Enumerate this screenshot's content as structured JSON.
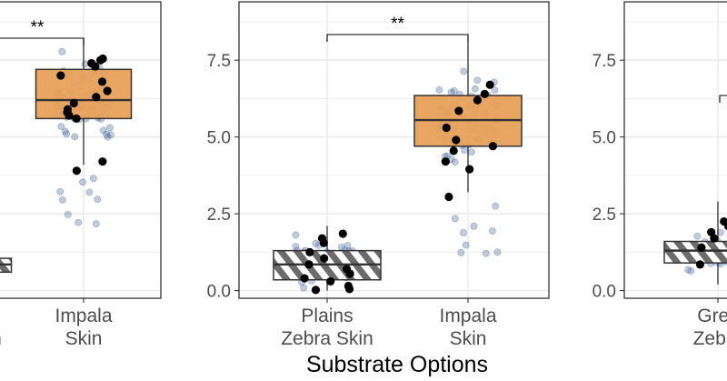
{
  "chart_data": {
    "type": "boxplot",
    "xlabel": "Substrate Options",
    "ylabel": "",
    "ylim": [
      -0.25,
      9.4
    ],
    "yticks": [
      "0.0",
      "2.5",
      "5.0",
      "7.5"
    ],
    "ytick_values": [
      0,
      2.5,
      5,
      7.5
    ],
    "grid": true,
    "colors": {
      "impala": "#E8A05A",
      "zebra_dark": "#6b6b6b",
      "zebra_light": "#ffffff",
      "jitter": "#4a6a9c",
      "mean_points": "#000000",
      "panel_border": "#333333",
      "grid": "#ebebeb"
    },
    "panels": [
      {
        "categories": [
          "",
          "Impala\nSkin"
        ],
        "significance": "**",
        "boxes": [
          {
            "category": "",
            "fill": "zebra",
            "min": 0.45,
            "q1": 0.6,
            "median": 0.85,
            "q3": 1.05,
            "max": 1.4
          },
          {
            "category": "Impala Skin",
            "fill": "impala",
            "min": 4.1,
            "q1": 5.6,
            "median": 6.2,
            "q3": 7.2,
            "max": 8.2
          }
        ],
        "means": [
          {
            "category": "Impala Skin",
            "values": [
              7.55,
              7.4,
              7.5,
              7.3,
              7.0,
              6.8,
              6.5,
              6.3,
              6.1,
              5.9,
              5.8,
              5.7,
              5.6,
              4.2,
              3.9
            ]
          }
        ]
      },
      {
        "categories": [
          "Plains\nZebra Skin",
          "Impala\nSkin"
        ],
        "significance": "**",
        "boxes": [
          {
            "category": "Plains Zebra Skin",
            "fill": "zebra",
            "min": 0.0,
            "q1": 0.35,
            "median": 0.85,
            "q3": 1.3,
            "max": 2.1
          },
          {
            "category": "Impala Skin",
            "fill": "impala",
            "min": 3.2,
            "q1": 4.7,
            "median": 5.55,
            "q3": 6.35,
            "max": 8.1
          }
        ],
        "means": [
          {
            "category": "Plains Zebra Skin",
            "values": [
              1.85,
              1.7,
              1.55,
              1.25,
              1.05,
              0.85,
              0.7,
              0.55,
              0.4,
              0.3,
              0.15,
              0.05,
              0.02
            ]
          },
          {
            "category": "Impala Skin",
            "values": [
              6.7,
              6.4,
              6.2,
              5.85,
              5.3,
              4.9,
              4.7,
              4.55,
              4.2,
              3.95,
              3.05
            ]
          }
        ]
      },
      {
        "categories": [
          "Grev\nZebra"
        ],
        "significance": "",
        "boxes": [
          {
            "category": "Grevy's Zebra Skin",
            "fill": "zebra",
            "min": 0.2,
            "q1": 0.9,
            "median": 1.3,
            "q3": 1.6,
            "max": 2.9
          }
        ],
        "means": [
          {
            "category": "Grevy's Zebra Skin",
            "values": [
              2.25,
              2.1,
              1.9,
              1.7,
              1.4,
              1.1,
              0.85,
              0.55
            ]
          }
        ]
      }
    ]
  }
}
